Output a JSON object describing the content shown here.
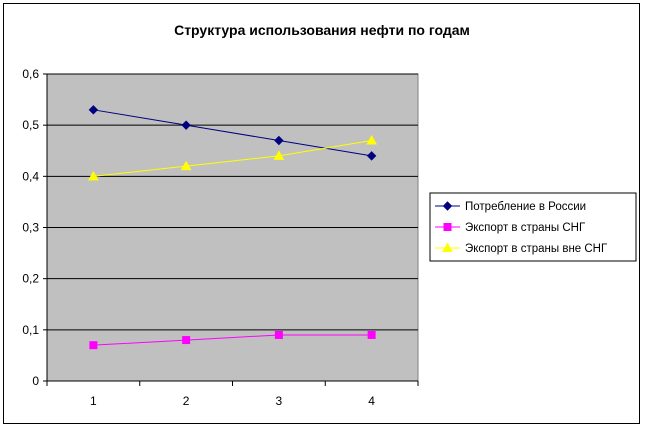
{
  "chart_data": {
    "type": "line",
    "title": "Структура использования нефти по годам",
    "xlabel": "",
    "ylabel": "",
    "categories": [
      "1",
      "2",
      "3",
      "4"
    ],
    "ylim": [
      0,
      0.6
    ],
    "yticks": [
      "0",
      "0,1",
      "0,2",
      "0,3",
      "0,4",
      "0,5",
      "0,6"
    ],
    "grid": true,
    "plot_background": "#C0C0C0",
    "legend_position": "right",
    "series": [
      {
        "name": "Потребление в России",
        "values": [
          0.53,
          0.5,
          0.47,
          0.44
        ],
        "color": "#000080",
        "marker": "diamond"
      },
      {
        "name": "Экспорт в страны СНГ",
        "values": [
          0.07,
          0.08,
          0.09,
          0.09
        ],
        "color": "#FF00FF",
        "marker": "square"
      },
      {
        "name": "Экспорт в страны вне СНГ",
        "values": [
          0.4,
          0.42,
          0.44,
          0.47
        ],
        "color": "#FFFF00",
        "marker": "triangle"
      }
    ]
  }
}
